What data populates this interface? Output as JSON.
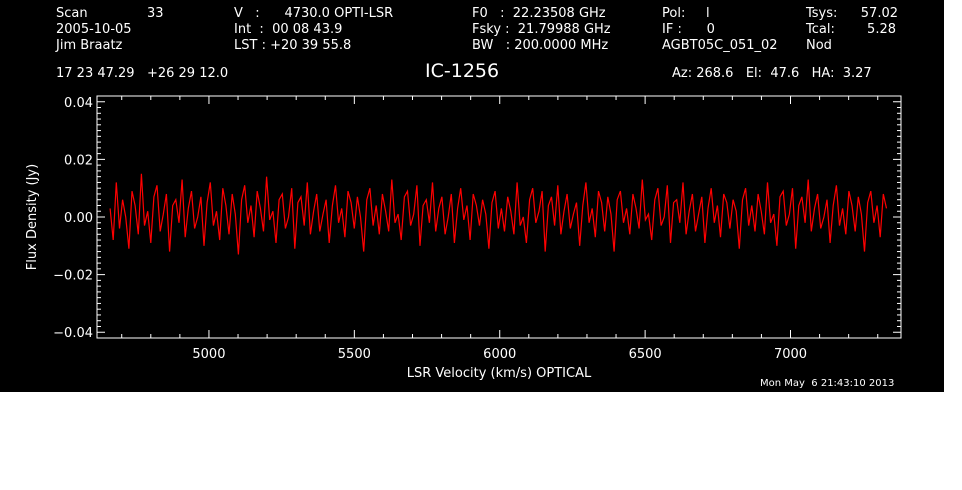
{
  "header": {
    "col1": {
      "scan_label": "Scan",
      "scan_value": "33",
      "date": "2005-10-05",
      "observer": "Jim Braatz"
    },
    "col2": {
      "line1": "V   :      4730.0 OPTI-LSR",
      "line2": "Int  :  00 08 43.9",
      "line3": "LST : +20 39 55.8"
    },
    "col3": {
      "line1": "F0   :  22.23508 GHz",
      "line2": "Fsky :  21.79988 GHz",
      "line3": "BW   : 200.0000 MHz"
    },
    "col4": {
      "line1": "Pol:     l",
      "line2": "IF :      0",
      "line3": "AGBT05C_051_02"
    },
    "col5": {
      "tsys_label": "Tsys:",
      "tsys_value": "57.02",
      "tcal_label": "Tcal:",
      "tcal_value": "5.28",
      "mode": "Nod"
    },
    "coords": "17 23 47.29   +26 29 12.0",
    "source": "IC-1256",
    "az_el_ha": "Az: 268.6   El:  47.6   HA:  3.27"
  },
  "timestamp": "Mon May  6 21:43:10 2013",
  "colors": {
    "background": "#000000",
    "axes": "#ffffff",
    "series": "#ff0000"
  },
  "chart_data": {
    "type": "line",
    "title": "IC-1256",
    "xlabel": "LSR Velocity (km/s) OPTICAL",
    "ylabel": "Flux Density (Jy)",
    "xlim": [
      4615,
      7380
    ],
    "ylim": [
      -0.042,
      0.042
    ],
    "xticks": [
      {
        "value": 5000,
        "label": "5000"
      },
      {
        "value": 5500,
        "label": "5500"
      },
      {
        "value": 6000,
        "label": "6000"
      },
      {
        "value": 6500,
        "label": "6500"
      },
      {
        "value": 7000,
        "label": "7000"
      }
    ],
    "yticks": [
      {
        "value": -0.04,
        "label": "−0.04"
      },
      {
        "value": -0.02,
        "label": "−0.02"
      },
      {
        "value": 0.0,
        "label": "0.00"
      },
      {
        "value": 0.02,
        "label": "0.02"
      },
      {
        "value": 0.04,
        "label": "0.04"
      }
    ],
    "grid": false,
    "series": [
      {
        "x_start": 4660,
        "x_end": 7330,
        "y": [
          0.003,
          -0.008,
          0.012,
          -0.004,
          0.006,
          0.0,
          -0.011,
          0.009,
          0.004,
          -0.006,
          0.015,
          -0.003,
          0.002,
          -0.009,
          0.007,
          0.011,
          -0.005,
          0.001,
          0.008,
          -0.012,
          0.004,
          0.006,
          -0.002,
          0.013,
          -0.007,
          0.003,
          0.009,
          -0.004,
          0.0,
          0.007,
          -0.01,
          0.005,
          0.012,
          -0.003,
          0.002,
          -0.008,
          0.01,
          0.004,
          -0.006,
          0.008,
          0.001,
          -0.013,
          0.006,
          0.011,
          -0.002,
          0.004,
          -0.007,
          0.009,
          0.003,
          -0.005,
          0.014,
          -0.001,
          0.002,
          -0.009,
          0.006,
          0.008,
          -0.004,
          0.0,
          0.01,
          -0.011,
          0.005,
          0.007,
          -0.003,
          0.012,
          -0.006,
          0.002,
          0.008,
          -0.005,
          0.001,
          0.006,
          -0.009,
          0.004,
          0.011,
          -0.002,
          0.003,
          -0.007,
          0.009,
          0.005,
          -0.004,
          0.007,
          0.0,
          -0.012,
          0.006,
          0.01,
          -0.003,
          0.004,
          -0.006,
          0.008,
          0.002,
          -0.005,
          0.013,
          -0.002,
          0.001,
          -0.008,
          0.007,
          0.009,
          -0.003,
          0.001,
          0.011,
          -0.01,
          0.004,
          0.006,
          -0.002,
          0.012,
          -0.005,
          0.003,
          0.007,
          -0.006,
          0.0,
          0.008,
          -0.009,
          0.003,
          0.01,
          -0.001,
          0.004,
          -0.008,
          0.008,
          0.004,
          -0.003,
          0.006,
          0.001,
          -0.011,
          0.005,
          0.009,
          -0.004,
          0.003,
          -0.005,
          0.007,
          0.002,
          -0.006,
          0.012,
          -0.003,
          0.0,
          -0.009,
          0.006,
          0.01,
          -0.002,
          0.002,
          0.009,
          -0.012,
          0.004,
          0.007,
          -0.003,
          0.011,
          -0.006,
          0.002,
          0.008,
          -0.004,
          0.001,
          0.005,
          -0.01,
          0.004,
          0.012,
          -0.002,
          0.003,
          -0.007,
          0.009,
          0.005,
          -0.005,
          0.007,
          0.001,
          -0.012,
          0.006,
          0.009,
          -0.002,
          0.003,
          -0.006,
          0.008,
          0.003,
          -0.004,
          0.013,
          -0.001,
          0.001,
          -0.008,
          0.006,
          0.01,
          -0.003,
          0.0,
          0.011,
          -0.009,
          0.005,
          0.006,
          -0.002,
          0.012,
          -0.006,
          0.002,
          0.008,
          -0.005,
          0.001,
          0.007,
          -0.009,
          0.003,
          0.01,
          -0.002,
          0.004,
          -0.007,
          0.008,
          0.005,
          -0.004,
          0.006,
          0.002,
          -0.011,
          0.006,
          0.01,
          -0.003,
          0.004,
          -0.005,
          0.008,
          0.002,
          -0.006,
          0.012,
          -0.002,
          0.001,
          -0.01,
          0.007,
          0.009,
          -0.003,
          0.001,
          0.01,
          -0.011,
          0.004,
          0.007,
          -0.002,
          0.013,
          -0.005,
          0.003,
          0.008,
          -0.004,
          0.0,
          0.006,
          -0.009,
          0.004,
          0.011,
          -0.003,
          0.003,
          -0.006,
          0.009,
          0.004,
          -0.005,
          0.007,
          0.001,
          -0.012,
          0.005,
          0.009,
          -0.002,
          0.004,
          -0.007,
          0.008,
          0.003
        ]
      }
    ]
  }
}
